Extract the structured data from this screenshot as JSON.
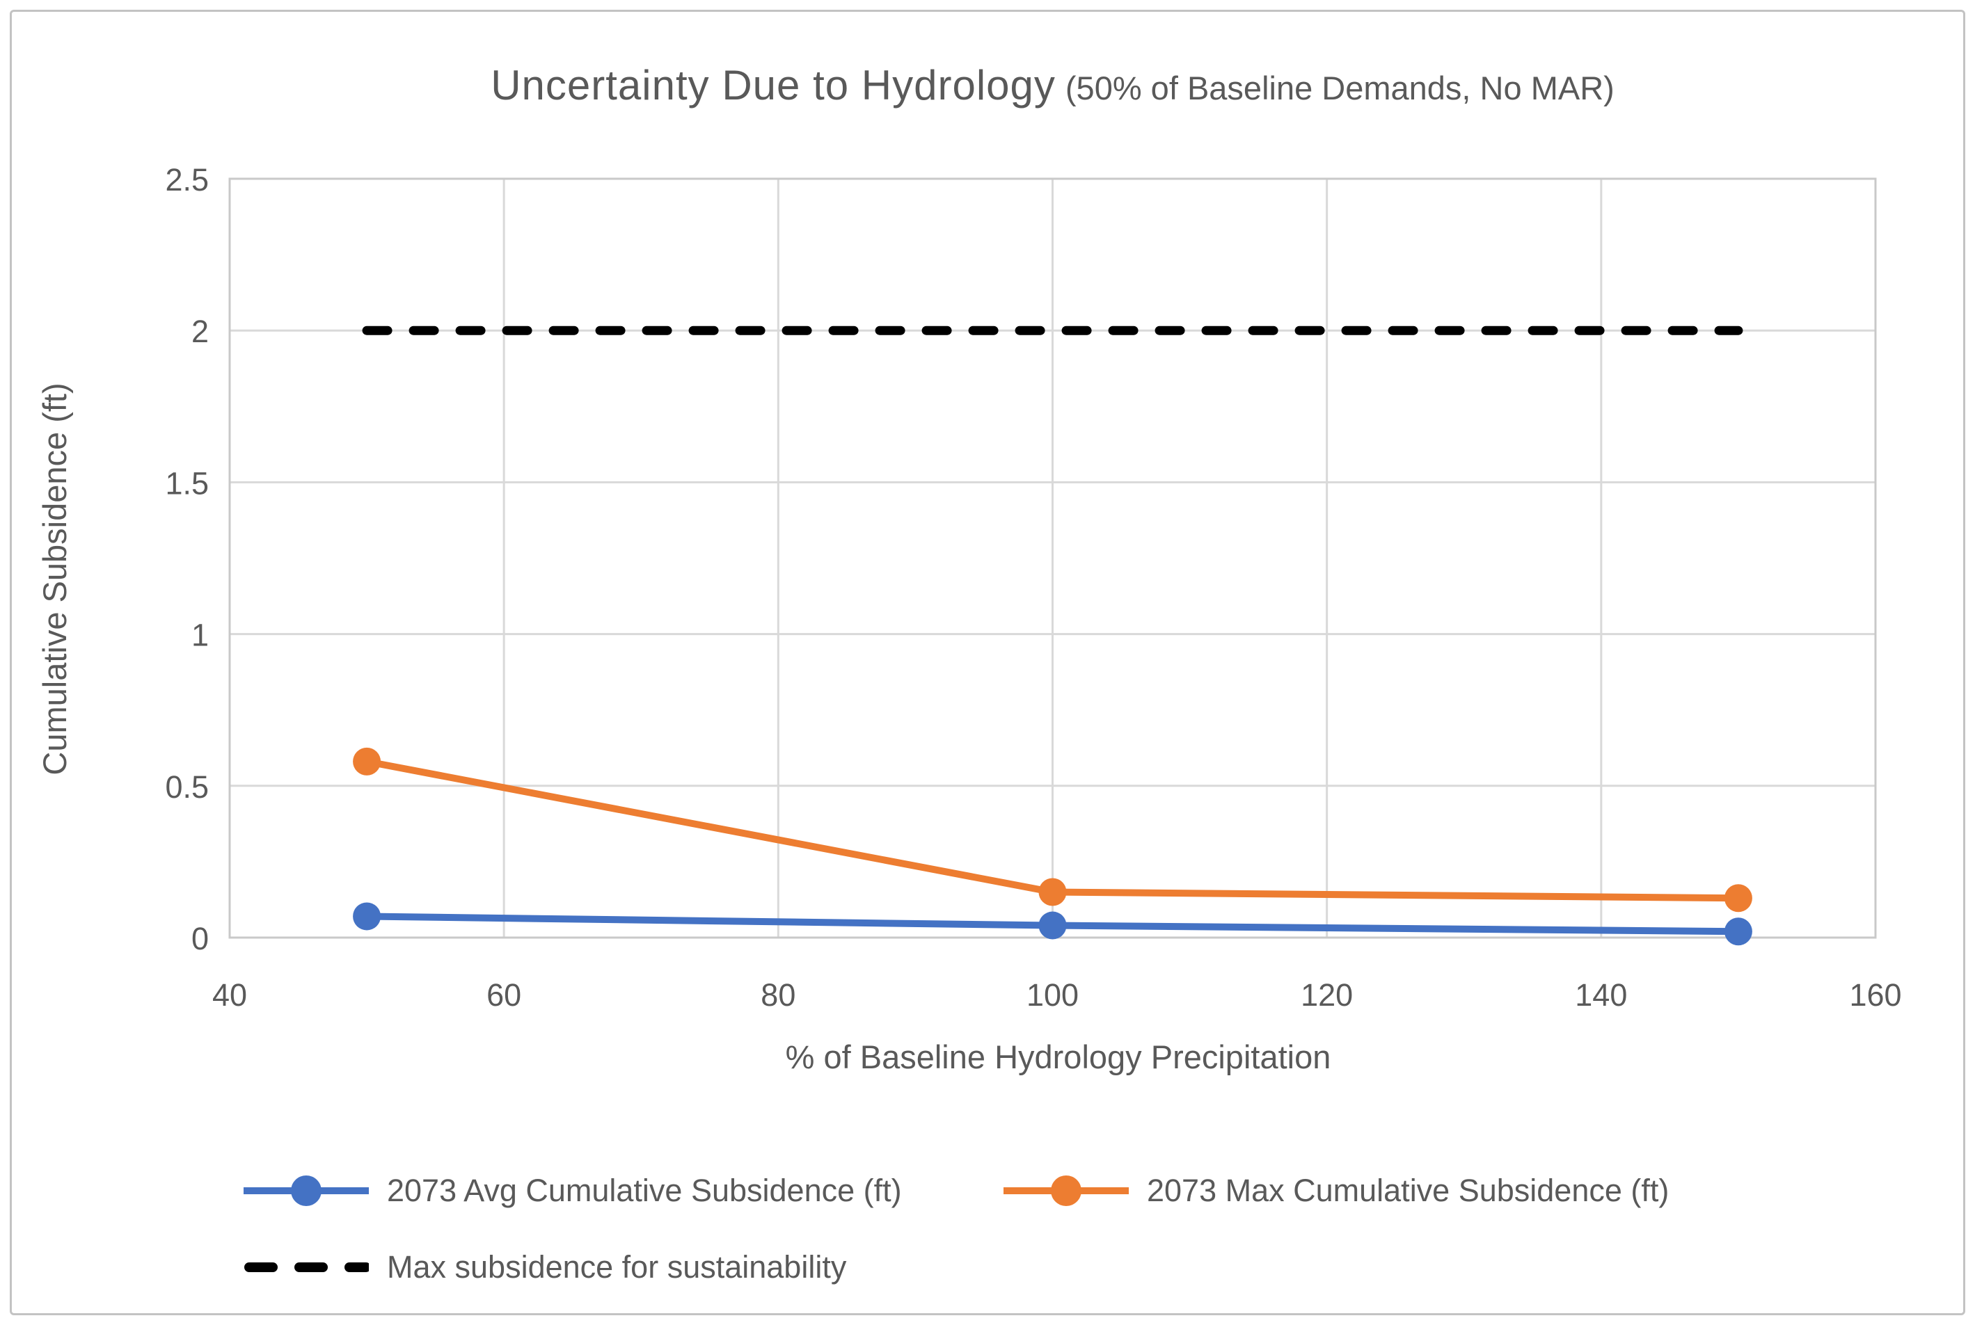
{
  "title": {
    "main": "Uncertainty Due to Hydrology",
    "sub": "(50% of Baseline Demands, No MAR)"
  },
  "chart_data": {
    "type": "line",
    "x": [
      50,
      100,
      150
    ],
    "series": [
      {
        "name": "2073 Avg Cumulative Subsidence (ft)",
        "color": "#4472C4",
        "marker": "circle",
        "values": [
          0.07,
          0.04,
          0.02
        ]
      },
      {
        "name": "2073 Max Cumulative Subsidence (ft)",
        "color": "#ED7D31",
        "marker": "circle",
        "values": [
          0.58,
          0.15,
          0.13
        ]
      }
    ],
    "reference_line": {
      "name": "Max subsidence for sustainability",
      "color": "#000000",
      "style": "dashed",
      "y": 2,
      "x_start": 50,
      "x_end": 150
    },
    "xlabel": "% of Baseline Hydrology Precipitation",
    "ylabel": "Cumulative Subsidence (ft)",
    "xlim": [
      40,
      160
    ],
    "ylim": [
      0,
      2.5
    ],
    "xticks": [
      40,
      60,
      80,
      100,
      120,
      140,
      160
    ],
    "yticks": [
      0,
      0.5,
      1,
      1.5,
      2,
      2.5
    ],
    "grid": true,
    "legend_position": "bottom"
  },
  "colors": {
    "grid": "#d9d9d9",
    "plot_frame": "#c9c9c9",
    "text": "#595959",
    "background": "#ffffff"
  }
}
